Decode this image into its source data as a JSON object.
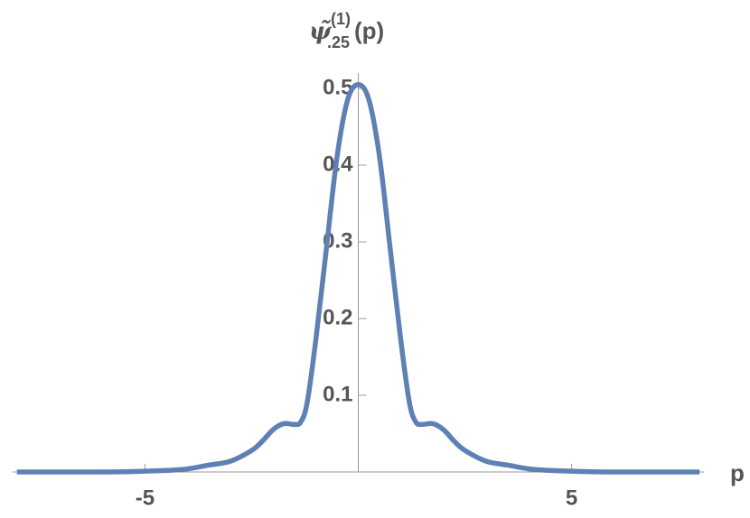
{
  "chart_data": {
    "type": "line",
    "y_label": {
      "symbol": "ψ̃",
      "superscript": "(1)",
      "subscript": ".25",
      "argument": "(p)"
    },
    "x_label": "p",
    "x": [
      -8,
      -6,
      -5,
      -4.5,
      -4,
      -3.5,
      -3,
      -2.5,
      -2.25,
      -2,
      -1.75,
      -1.5,
      -1.35,
      -1.2,
      -1,
      -0.75,
      -0.5,
      -0.25,
      0,
      0.25,
      0.5,
      0.75,
      1,
      1.2,
      1.35,
      1.5,
      1.75,
      2,
      2.25,
      2.5,
      3,
      3.5,
      4,
      4.5,
      5,
      6,
      8
    ],
    "series": [
      {
        "color": "#5e81b5",
        "values": [
          0,
          0,
          0.001,
          0.002,
          0.004,
          0.009,
          0.014,
          0.028,
          0.04,
          0.055,
          0.063,
          0.062,
          0.065,
          0.09,
          0.17,
          0.29,
          0.41,
          0.485,
          0.505,
          0.485,
          0.41,
          0.29,
          0.17,
          0.09,
          0.065,
          0.062,
          0.063,
          0.055,
          0.04,
          0.028,
          0.014,
          0.009,
          0.004,
          0.002,
          0.001,
          0,
          0
        ]
      }
    ],
    "xlim": [
      -8.1,
      8.1
    ],
    "ylim": [
      0,
      0.52
    ],
    "xticks": [
      -5,
      5
    ],
    "yticks": [
      0.1,
      0.2,
      0.3,
      0.4,
      0.5
    ]
  }
}
